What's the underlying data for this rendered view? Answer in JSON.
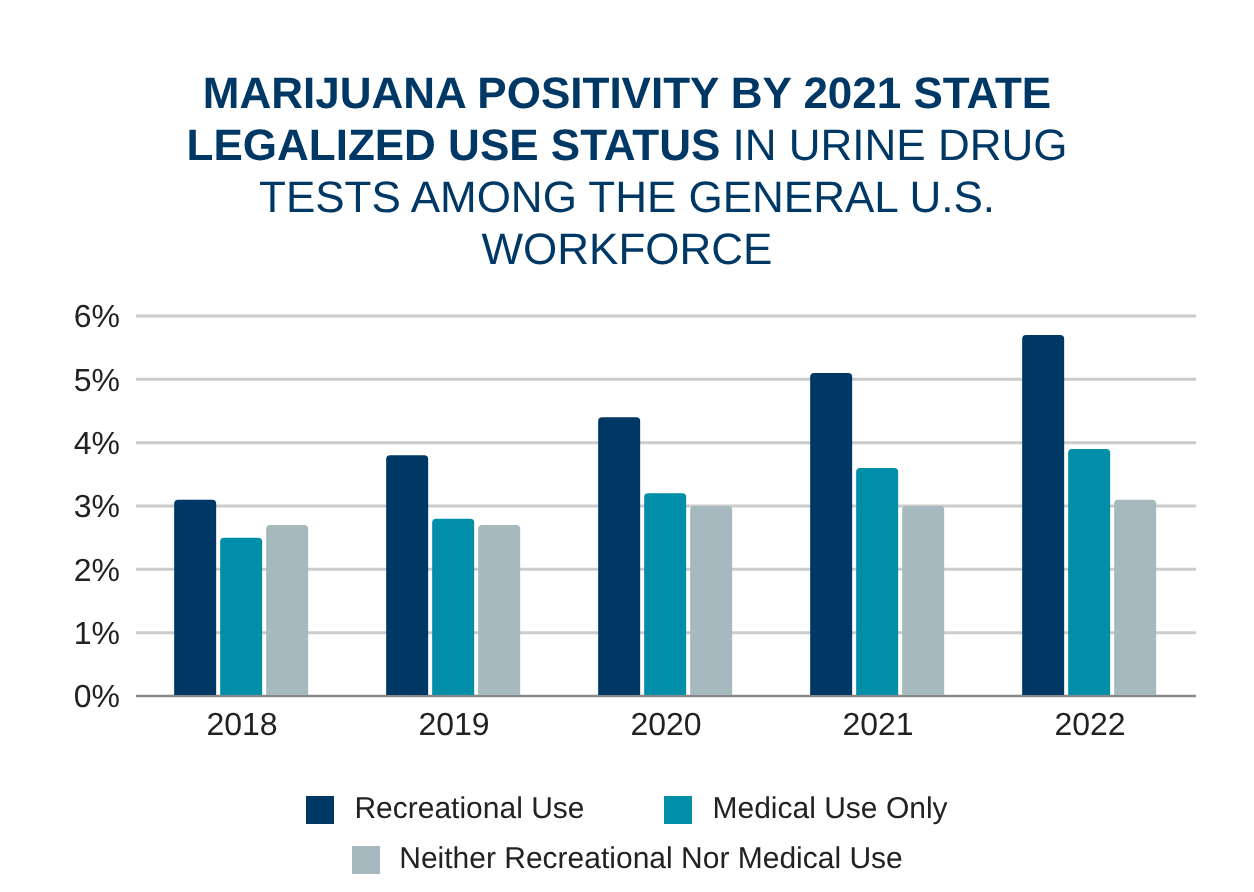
{
  "chart_data": {
    "type": "bar",
    "title": "MARIJUANA POSITIVITY BY 2021 STATE LEGALIZED USE STATUS",
    "subtitle": "IN URINE DRUG TESTS AMONG THE GENERAL U.S. WORKFORCE",
    "categories": [
      "2018",
      "2019",
      "2020",
      "2021",
      "2022"
    ],
    "series": [
      {
        "name": "Recreational Use",
        "color": "#003865",
        "values": [
          3.1,
          3.8,
          4.4,
          5.1,
          5.7
        ]
      },
      {
        "name": "Medical Use Only",
        "color": "#008ea8",
        "values": [
          2.5,
          2.8,
          3.2,
          3.6,
          3.9
        ]
      },
      {
        "name": "Neither Recreational Nor Medical Use",
        "color": "#a5b9bf",
        "values": [
          2.7,
          2.7,
          3.0,
          3.0,
          3.1
        ]
      }
    ],
    "ylim": [
      0,
      6
    ],
    "yticks": [
      {
        "value": 0,
        "label": "0%"
      },
      {
        "value": 1,
        "label": "1%"
      },
      {
        "value": 2,
        "label": "2%"
      },
      {
        "value": 3,
        "label": "3%"
      },
      {
        "value": 4,
        "label": "4%"
      },
      {
        "value": 5,
        "label": "5%"
      },
      {
        "value": 6,
        "label": "6%"
      }
    ],
    "grid": "y",
    "legend": "bottom"
  }
}
